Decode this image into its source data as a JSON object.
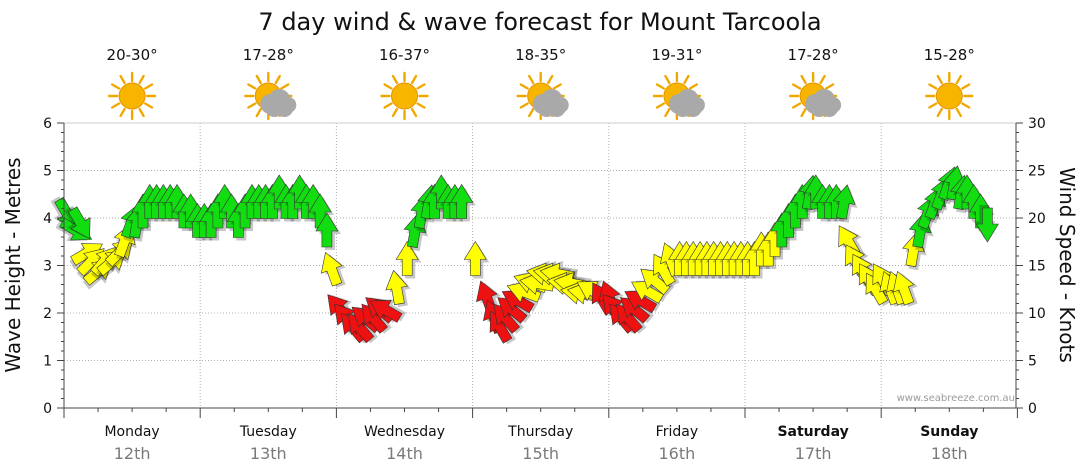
{
  "title": "7 day wind & wave forecast for Mount Tarcoola",
  "watermark": "www.seabreeze.com.au",
  "colors": {
    "green": "#11dd11",
    "yellow": "#ffff00",
    "red": "#ee1111",
    "grid": "#b0b0b0",
    "axis": "#444444"
  },
  "days": [
    {
      "name": "Monday",
      "date": "12th",
      "temp": "20-30°",
      "icon": "sun-icon",
      "bold": false
    },
    {
      "name": "Tuesday",
      "date": "13th",
      "temp": "17-28°",
      "icon": "sun-cloud-icon",
      "bold": false
    },
    {
      "name": "Wednesday",
      "date": "14th",
      "temp": "16-37°",
      "icon": "sun-icon",
      "bold": false
    },
    {
      "name": "Thursday",
      "date": "15th",
      "temp": "18-35°",
      "icon": "sun-cloud-icon",
      "bold": false
    },
    {
      "name": "Friday",
      "date": "16th",
      "temp": "19-31°",
      "icon": "sun-cloud-icon",
      "bold": false
    },
    {
      "name": "Saturday",
      "date": "17th",
      "temp": "17-28°",
      "icon": "sun-cloud-icon",
      "bold": true
    },
    {
      "name": "Sunday",
      "date": "18th",
      "temp": "15-28°",
      "icon": "sun-icon",
      "bold": true
    }
  ],
  "chart_data": {
    "type": "scatter",
    "ylabel_left": "Wave Height - Metres",
    "ylabel_right": "Wind Speed - Knots",
    "ylim_left": [
      0,
      6
    ],
    "ylim_right": [
      0,
      30
    ],
    "yticks_left": [
      "0",
      "1",
      "2",
      "3",
      "4",
      "5",
      "6"
    ],
    "yticks_right": [
      "0",
      "5",
      "10",
      "15",
      "20",
      "25",
      "30"
    ],
    "grid": true,
    "x_unit": "days from start of Monday 12th",
    "wind_knots": [
      {
        "t": 0.0,
        "kn": 21,
        "deg": 150
      },
      {
        "t": 0.05,
        "kn": 19,
        "deg": 120
      },
      {
        "t": 0.1,
        "kn": 20,
        "deg": 150
      },
      {
        "t": 0.13,
        "kn": 16,
        "deg": 60
      },
      {
        "t": 0.17,
        "kn": 15,
        "deg": 45
      },
      {
        "t": 0.22,
        "kn": 14,
        "deg": 50
      },
      {
        "t": 0.27,
        "kn": 15,
        "deg": 40
      },
      {
        "t": 0.32,
        "kn": 15,
        "deg": 50
      },
      {
        "t": 0.38,
        "kn": 16,
        "deg": 45
      },
      {
        "t": 0.43,
        "kn": 17,
        "deg": 20
      },
      {
        "t": 0.48,
        "kn": 19,
        "deg": 20
      },
      {
        "t": 0.53,
        "kn": 19,
        "deg": 10
      },
      {
        "t": 0.58,
        "kn": 20,
        "deg": 0
      },
      {
        "t": 0.63,
        "kn": 21,
        "deg": 0
      },
      {
        "t": 0.68,
        "kn": 21,
        "deg": 0
      },
      {
        "t": 0.73,
        "kn": 21,
        "deg": 0
      },
      {
        "t": 0.78,
        "kn": 21,
        "deg": 0
      },
      {
        "t": 0.83,
        "kn": 21,
        "deg": 0
      },
      {
        "t": 0.88,
        "kn": 20,
        "deg": 0
      },
      {
        "t": 0.93,
        "kn": 20,
        "deg": 0
      },
      {
        "t": 0.98,
        "kn": 19,
        "deg": 0
      },
      {
        "t": 1.03,
        "kn": 19,
        "deg": 0
      },
      {
        "t": 1.08,
        "kn": 19,
        "deg": 0
      },
      {
        "t": 1.13,
        "kn": 20,
        "deg": 0
      },
      {
        "t": 1.18,
        "kn": 21,
        "deg": 0
      },
      {
        "t": 1.23,
        "kn": 20,
        "deg": 0
      },
      {
        "t": 1.28,
        "kn": 19,
        "deg": 0
      },
      {
        "t": 1.33,
        "kn": 20,
        "deg": 0
      },
      {
        "t": 1.38,
        "kn": 21,
        "deg": 0
      },
      {
        "t": 1.43,
        "kn": 21,
        "deg": 0
      },
      {
        "t": 1.48,
        "kn": 21,
        "deg": 0
      },
      {
        "t": 1.53,
        "kn": 21,
        "deg": 0
      },
      {
        "t": 1.58,
        "kn": 22,
        "deg": 0
      },
      {
        "t": 1.63,
        "kn": 21,
        "deg": 0
      },
      {
        "t": 1.68,
        "kn": 21,
        "deg": 0
      },
      {
        "t": 1.73,
        "kn": 22,
        "deg": 0
      },
      {
        "t": 1.78,
        "kn": 21,
        "deg": 0
      },
      {
        "t": 1.83,
        "kn": 21,
        "deg": 0
      },
      {
        "t": 1.88,
        "kn": 20,
        "deg": 0
      },
      {
        "t": 1.93,
        "kn": 18,
        "deg": 0
      },
      {
        "t": 1.98,
        "kn": 14,
        "deg": -20
      },
      {
        "t": 2.05,
        "kn": 10,
        "deg": -40
      },
      {
        "t": 2.1,
        "kn": 9,
        "deg": -40
      },
      {
        "t": 2.15,
        "kn": 8,
        "deg": -40
      },
      {
        "t": 2.2,
        "kn": 8,
        "deg": -40
      },
      {
        "t": 2.25,
        "kn": 9,
        "deg": -50
      },
      {
        "t": 2.3,
        "kn": 9,
        "deg": -40
      },
      {
        "t": 2.35,
        "kn": 10,
        "deg": -50
      },
      {
        "t": 2.4,
        "kn": 10,
        "deg": -60
      },
      {
        "t": 2.45,
        "kn": 12,
        "deg": -10
      },
      {
        "t": 2.52,
        "kn": 15,
        "deg": 0
      },
      {
        "t": 2.57,
        "kn": 18,
        "deg": 10
      },
      {
        "t": 2.62,
        "kn": 20,
        "deg": 10
      },
      {
        "t": 2.67,
        "kn": 21,
        "deg": 10
      },
      {
        "t": 2.72,
        "kn": 21,
        "deg": 0
      },
      {
        "t": 2.77,
        "kn": 22,
        "deg": 0
      },
      {
        "t": 2.82,
        "kn": 21,
        "deg": 0
      },
      {
        "t": 2.87,
        "kn": 21,
        "deg": 0
      },
      {
        "t": 2.92,
        "kn": 21,
        "deg": 0
      },
      {
        "t": 3.02,
        "kn": 15,
        "deg": 0
      },
      {
        "t": 3.12,
        "kn": 11,
        "deg": -20
      },
      {
        "t": 3.17,
        "kn": 9,
        "deg": -20
      },
      {
        "t": 3.22,
        "kn": 8,
        "deg": -30
      },
      {
        "t": 3.27,
        "kn": 9,
        "deg": -40
      },
      {
        "t": 3.32,
        "kn": 10,
        "deg": -50
      },
      {
        "t": 3.37,
        "kn": 11,
        "deg": -60
      },
      {
        "t": 3.42,
        "kn": 12,
        "deg": -70
      },
      {
        "t": 3.47,
        "kn": 13,
        "deg": -70
      },
      {
        "t": 3.52,
        "kn": 13,
        "deg": -80
      },
      {
        "t": 3.57,
        "kn": 14,
        "deg": -80
      },
      {
        "t": 3.62,
        "kn": 14,
        "deg": -80
      },
      {
        "t": 3.67,
        "kn": 14,
        "deg": -80
      },
      {
        "t": 3.72,
        "kn": 13,
        "deg": -80
      },
      {
        "t": 3.77,
        "kn": 13,
        "deg": -80
      },
      {
        "t": 3.82,
        "kn": 12,
        "deg": -80
      },
      {
        "t": 3.87,
        "kn": 12,
        "deg": -80
      },
      {
        "t": 3.92,
        "kn": 12,
        "deg": -60
      },
      {
        "t": 3.97,
        "kn": 11,
        "deg": -30
      },
      {
        "t": 4.02,
        "kn": 11,
        "deg": -20
      },
      {
        "t": 4.07,
        "kn": 10,
        "deg": -40
      },
      {
        "t": 4.12,
        "kn": 9,
        "deg": -40
      },
      {
        "t": 4.17,
        "kn": 9,
        "deg": -40
      },
      {
        "t": 4.22,
        "kn": 10,
        "deg": -50
      },
      {
        "t": 4.27,
        "kn": 11,
        "deg": -60
      },
      {
        "t": 4.32,
        "kn": 12,
        "deg": -60
      },
      {
        "t": 4.37,
        "kn": 13,
        "deg": -50
      },
      {
        "t": 4.42,
        "kn": 14,
        "deg": -30
      },
      {
        "t": 4.47,
        "kn": 15,
        "deg": -20
      },
      {
        "t": 4.52,
        "kn": 15,
        "deg": 0
      },
      {
        "t": 4.57,
        "kn": 15,
        "deg": 0
      },
      {
        "t": 4.62,
        "kn": 15,
        "deg": 0
      },
      {
        "t": 4.67,
        "kn": 15,
        "deg": 0
      },
      {
        "t": 4.72,
        "kn": 15,
        "deg": 0
      },
      {
        "t": 4.77,
        "kn": 15,
        "deg": 0
      },
      {
        "t": 4.82,
        "kn": 15,
        "deg": 0
      },
      {
        "t": 4.87,
        "kn": 15,
        "deg": 0
      },
      {
        "t": 4.92,
        "kn": 15,
        "deg": 0
      },
      {
        "t": 4.97,
        "kn": 15,
        "deg": 0
      },
      {
        "t": 5.02,
        "kn": 15,
        "deg": 0
      },
      {
        "t": 5.07,
        "kn": 15,
        "deg": 0
      },
      {
        "t": 5.12,
        "kn": 16,
        "deg": 0
      },
      {
        "t": 5.17,
        "kn": 16,
        "deg": 0
      },
      {
        "t": 5.22,
        "kn": 17,
        "deg": 0
      },
      {
        "t": 5.27,
        "kn": 18,
        "deg": 0
      },
      {
        "t": 5.32,
        "kn": 19,
        "deg": 0
      },
      {
        "t": 5.37,
        "kn": 20,
        "deg": 0
      },
      {
        "t": 5.42,
        "kn": 21,
        "deg": 0
      },
      {
        "t": 5.47,
        "kn": 22,
        "deg": 10
      },
      {
        "t": 5.52,
        "kn": 22,
        "deg": 0
      },
      {
        "t": 5.57,
        "kn": 21,
        "deg": 0
      },
      {
        "t": 5.62,
        "kn": 21,
        "deg": 0
      },
      {
        "t": 5.67,
        "kn": 21,
        "deg": 0
      },
      {
        "t": 5.72,
        "kn": 21,
        "deg": 10
      },
      {
        "t": 5.78,
        "kn": 17,
        "deg": -30
      },
      {
        "t": 5.83,
        "kn": 15,
        "deg": -30
      },
      {
        "t": 5.88,
        "kn": 14,
        "deg": -30
      },
      {
        "t": 5.93,
        "kn": 13,
        "deg": -30
      },
      {
        "t": 5.98,
        "kn": 12,
        "deg": -30
      },
      {
        "t": 6.03,
        "kn": 13,
        "deg": -30
      },
      {
        "t": 6.08,
        "kn": 12,
        "deg": -20
      },
      {
        "t": 6.13,
        "kn": 12,
        "deg": -20
      },
      {
        "t": 6.18,
        "kn": 12,
        "deg": -20
      },
      {
        "t": 6.23,
        "kn": 16,
        "deg": 10
      },
      {
        "t": 6.28,
        "kn": 18,
        "deg": 10
      },
      {
        "t": 6.33,
        "kn": 20,
        "deg": 20
      },
      {
        "t": 6.38,
        "kn": 21,
        "deg": 20
      },
      {
        "t": 6.43,
        "kn": 22,
        "deg": 20
      },
      {
        "t": 6.48,
        "kn": 23,
        "deg": 20
      },
      {
        "t": 6.53,
        "kn": 23,
        "deg": 10
      },
      {
        "t": 6.58,
        "kn": 22,
        "deg": 10
      },
      {
        "t": 6.63,
        "kn": 22,
        "deg": 0
      },
      {
        "t": 6.68,
        "kn": 21,
        "deg": 0
      },
      {
        "t": 6.73,
        "kn": 20,
        "deg": 0
      },
      {
        "t": 6.78,
        "kn": 20,
        "deg": 180
      }
    ]
  }
}
